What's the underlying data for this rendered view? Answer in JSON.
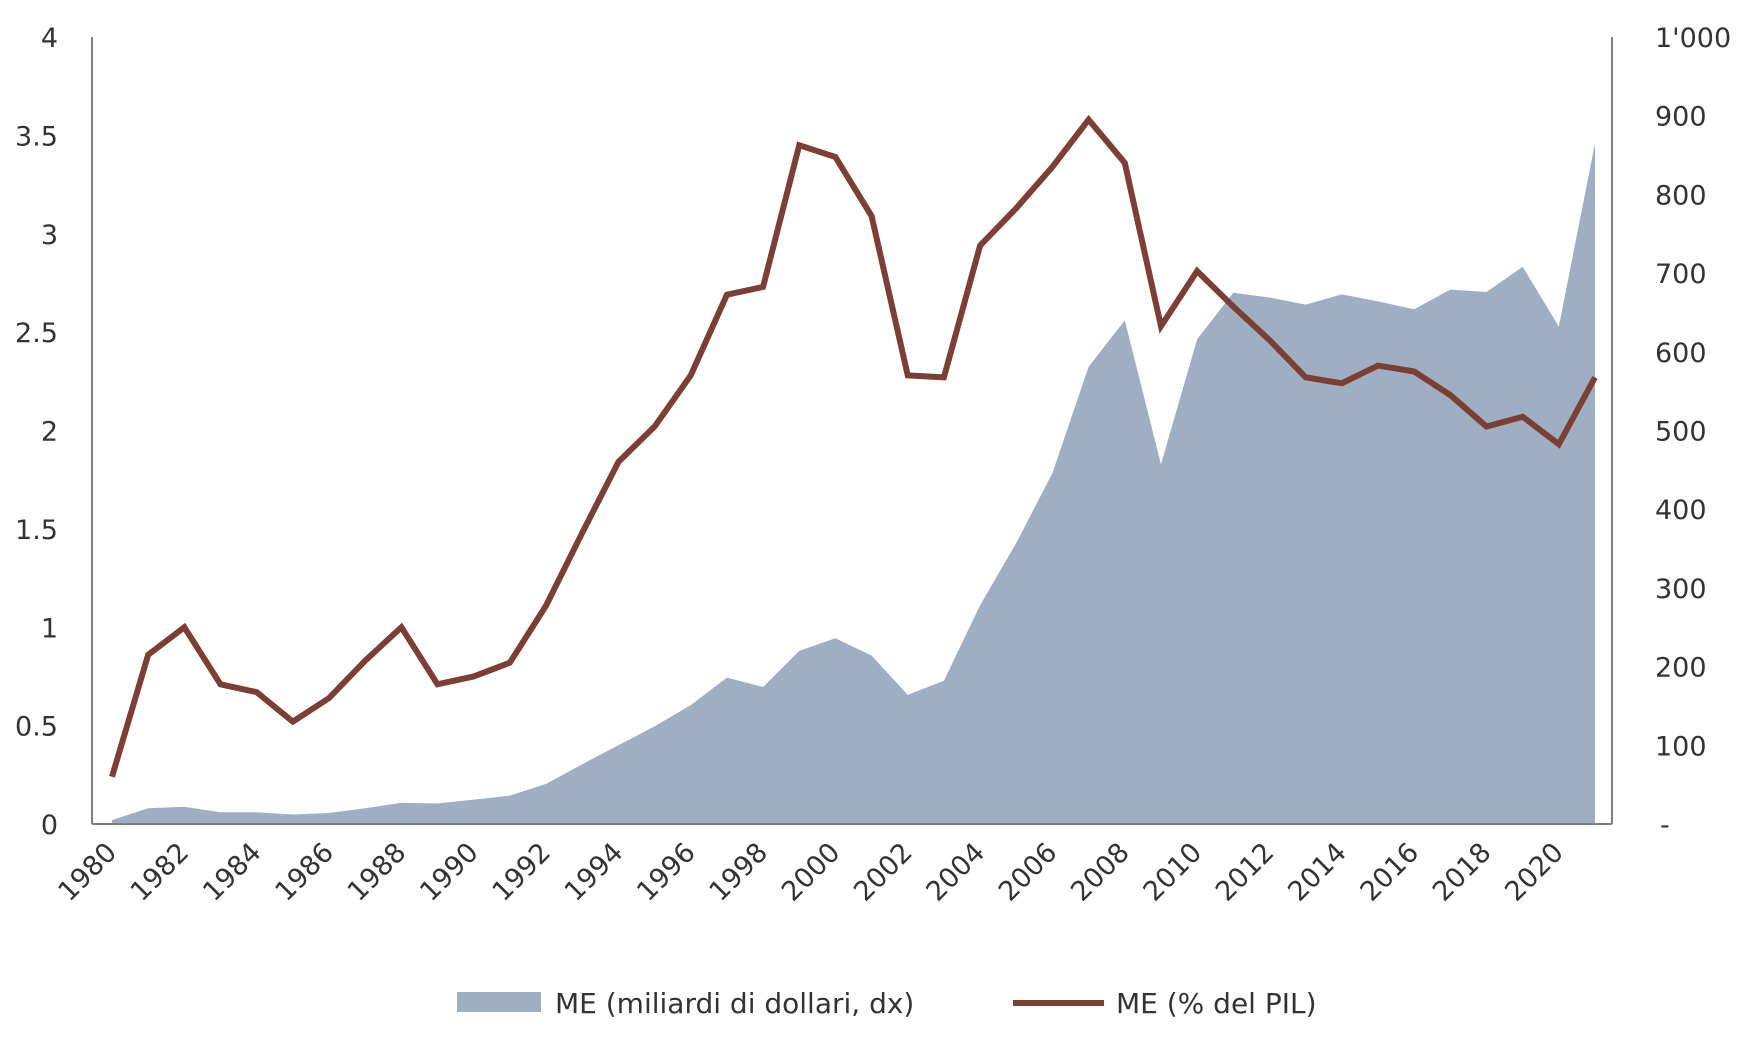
{
  "chart_data": {
    "type": "line",
    "title": "",
    "xlabel": "",
    "ylabel": "",
    "grid": false,
    "legend_position": "bottom",
    "x": [
      1980,
      1981,
      1982,
      1983,
      1984,
      1985,
      1986,
      1987,
      1988,
      1989,
      1990,
      1991,
      1992,
      1993,
      1994,
      1995,
      1996,
      1997,
      1998,
      1999,
      2000,
      2001,
      2002,
      2003,
      2004,
      2005,
      2006,
      2007,
      2008,
      2009,
      2010,
      2011,
      2012,
      2013,
      2014,
      2015,
      2016,
      2017,
      2018,
      2019,
      2020,
      2021
    ],
    "x_tick_labels": [
      "1980",
      "1982",
      "1984",
      "1986",
      "1988",
      "1990",
      "1992",
      "1994",
      "1996",
      "1998",
      "2000",
      "2002",
      "2004",
      "2006",
      "2008",
      "2010",
      "2012",
      "2014",
      "2016",
      "2018",
      "2020"
    ],
    "y_left": {
      "ylim": [
        0,
        4
      ],
      "tick_labels": [
        "0",
        "0.5",
        "1",
        "1.5",
        "2",
        "2.5",
        "3",
        "3.5",
        "4"
      ]
    },
    "y_right": {
      "ylim": [
        0,
        1000
      ],
      "tick_labels": [
        "-",
        "100",
        "200",
        "300",
        "400",
        "500",
        "600",
        "700",
        "800",
        "900",
        "1'000"
      ]
    },
    "series": [
      {
        "name": "ME (miliardi di dollari, dx)",
        "type": "area",
        "axis": "right",
        "color": "#9eafc3",
        "values": [
          5,
          20,
          22,
          15,
          15,
          12,
          14,
          20,
          27,
          26,
          31,
          36,
          51,
          76,
          100,
          124,
          151,
          186,
          174,
          220,
          236,
          214,
          164,
          182,
          278,
          357,
          446,
          581,
          640,
          457,
          616,
          675,
          669,
          660,
          673,
          664,
          654,
          679,
          676,
          708,
          632,
          865
        ]
      },
      {
        "name": "ME (% del PIL)",
        "type": "line",
        "axis": "left",
        "color": "#7b3f35",
        "values": [
          0.24,
          0.86,
          1.0,
          0.71,
          0.67,
          0.52,
          0.64,
          0.83,
          1.0,
          0.71,
          0.75,
          0.82,
          1.11,
          1.48,
          1.84,
          2.02,
          2.28,
          2.69,
          2.73,
          3.45,
          3.39,
          3.09,
          2.28,
          2.27,
          2.94,
          3.13,
          3.34,
          3.58,
          3.36,
          2.53,
          2.81,
          2.63,
          2.46,
          2.27,
          2.24,
          2.33,
          2.3,
          2.18,
          2.02,
          2.07,
          1.93,
          2.27
        ]
      }
    ]
  }
}
